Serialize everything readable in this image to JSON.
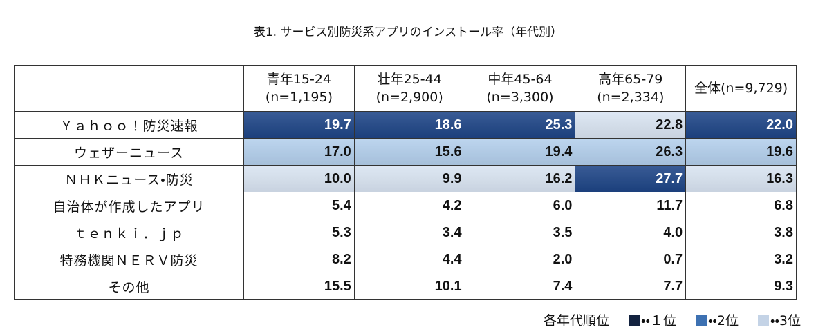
{
  "title": "表1. サービス別防災系アプリのインストール率（年代別）",
  "table": {
    "header": [
      [
        "青年15-24",
        "(n=1,195)"
      ],
      [
        "壮年25-44",
        "(n=2,900)"
      ],
      [
        "中年45-64",
        "(n=3,300)"
      ],
      [
        "高年65-79",
        "(n=2,334)"
      ],
      [
        "全体(n=9,729)"
      ]
    ],
    "rows": [
      {
        "label": "Ｙａｈｏｏ！防災速報",
        "cells": [
          "19.7",
          "18.6",
          "25.3",
          "22.8",
          "22.0"
        ],
        "colors": [
          "#1d4486",
          "#1d4486",
          "#1d4486",
          "#d9e4f2",
          "#1d4486"
        ]
      },
      {
        "label": "ウェザーニュース",
        "cells": [
          "17.0",
          "15.6",
          "19.4",
          "26.3",
          "19.6"
        ],
        "colors": [
          "#b3cfec",
          "#b3cfec",
          "#b3cfec",
          "#b3cfec",
          "#b3cfec"
        ]
      },
      {
        "label": "ＮＨＫニュース・防災",
        "cells": [
          "10.0",
          "9.9",
          "16.2",
          "27.7",
          "16.3"
        ],
        "colors": [
          "#d9e4f2",
          "#d9e4f2",
          "#d9e4f2",
          "#1d4486",
          "#d9e4f2"
        ]
      },
      {
        "label": "自治体が作成したアプリ",
        "cells": [
          "5.4",
          "4.2",
          "6.0",
          "11.7",
          "6.8"
        ],
        "colors": [
          null,
          null,
          null,
          null,
          null
        ]
      },
      {
        "label": "ｔｅｎｋｉ．ｊｐ",
        "cells": [
          "5.3",
          "3.4",
          "3.5",
          "4.0",
          "3.8"
        ],
        "colors": [
          null,
          null,
          null,
          null,
          null
        ]
      },
      {
        "label": "特務機関ＮＥＲＶ防災",
        "cells": [
          "8.2",
          "4.4",
          "2.0",
          "0.7",
          "3.2"
        ],
        "colors": [
          null,
          null,
          null,
          null,
          null
        ]
      },
      {
        "label": "その他",
        "cells": [
          "15.5",
          "10.1",
          "7.4",
          "7.7",
          "9.3"
        ],
        "colors": [
          null,
          null,
          null,
          null,
          null
        ]
      }
    ]
  },
  "legend": {
    "title": "各年代順位",
    "items": [
      {
        "label": "・・１位",
        "color": "#13223f"
      },
      {
        "label": "・・2位",
        "color": "#3d71b2"
      },
      {
        "label": "・・3位",
        "color": "#c4d3e6"
      }
    ]
  }
}
